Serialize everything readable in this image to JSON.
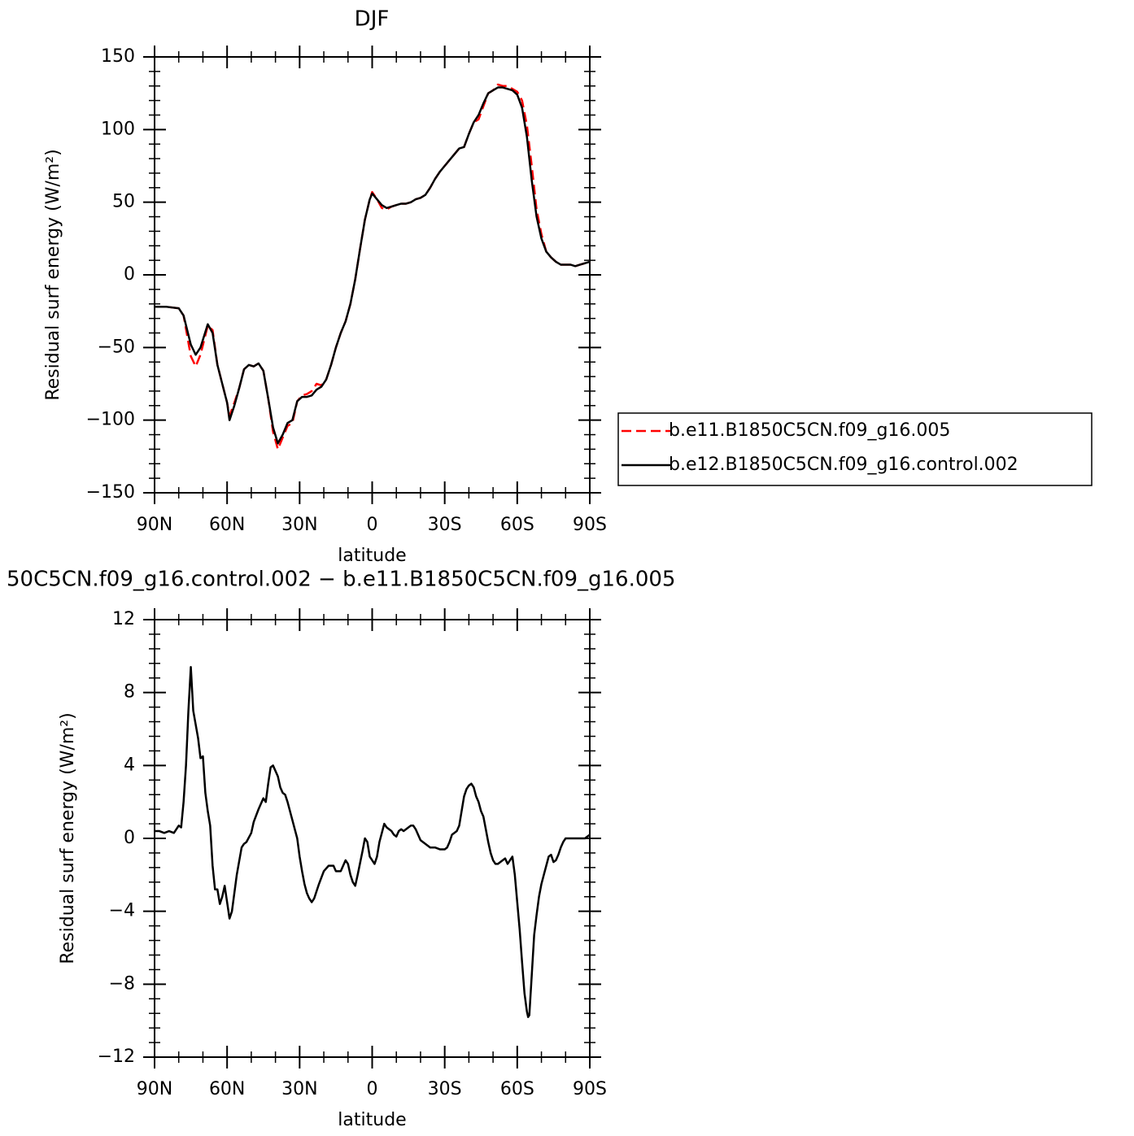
{
  "chart_data": [
    {
      "type": "line",
      "title": "DJF",
      "xlabel": "latitude",
      "ylabel": "Residual surf energy (W/m²)",
      "x": [
        90,
        85,
        80,
        78,
        75,
        73,
        71,
        68,
        66,
        64,
        62,
        60,
        59,
        57,
        55,
        53,
        51,
        49,
        47,
        45,
        43,
        41,
        39,
        37,
        35,
        33,
        31,
        29,
        27,
        25,
        23,
        21,
        19,
        17,
        15,
        13,
        11,
        9,
        7,
        5,
        3,
        1,
        0,
        -2,
        -4,
        -6,
        -8,
        -10,
        -12,
        -14,
        -16,
        -18,
        -20,
        -22,
        -24,
        -26,
        -28,
        -30,
        -32,
        -34,
        -36,
        -38,
        -40,
        -42,
        -44,
        -46,
        -48,
        -50,
        -52,
        -54,
        -56,
        -58,
        -60,
        -62,
        -64,
        -66,
        -68,
        -70,
        -72,
        -74,
        -76,
        -78,
        -80,
        -82,
        -84,
        -86,
        -88,
        -90
      ],
      "xlim": [
        90,
        -90
      ],
      "xticks": [
        {
          "value": 90,
          "label": "90N"
        },
        {
          "value": 60,
          "label": "60N"
        },
        {
          "value": 30,
          "label": "30N"
        },
        0,
        {
          "value": -30,
          "label": "30S"
        },
        {
          "value": -60,
          "label": "60S"
        },
        {
          "value": -90,
          "label": "90S"
        }
      ],
      "ylim": [
        -150,
        150
      ],
      "yticks": [
        -150,
        -100,
        -50,
        0,
        50,
        100,
        150
      ],
      "series": [
        {
          "name": "b.e11.B1850C5CN.f09_g16.005",
          "color": "#ff0000",
          "linestyle": "dashed",
          "values": [
            -22,
            -22,
            -23,
            -28,
            -56,
            -63,
            -55,
            -35,
            -38,
            -62,
            -75,
            -88,
            -97,
            -88,
            -78,
            -65,
            -62,
            -63,
            -61,
            -66,
            -85,
            -108,
            -120,
            -112,
            -104,
            -102,
            -87,
            -83,
            -82,
            -80,
            -75,
            -76,
            -72,
            -62,
            -50,
            -40,
            -32,
            -20,
            -3,
            18,
            38,
            52,
            57,
            52,
            46,
            45,
            47,
            48,
            49,
            49,
            50,
            52,
            53,
            55,
            60,
            66,
            71,
            75,
            79,
            83,
            87,
            88,
            97,
            105,
            107,
            116,
            125,
            127,
            131,
            130,
            130,
            128,
            126,
            120,
            103,
            75,
            45,
            28,
            16,
            12,
            9,
            7,
            7,
            7,
            6,
            7,
            8,
            9
          ]
        },
        {
          "name": "b.e12.B1850C5CN.f09_g16.control.002",
          "color": "#000000",
          "linestyle": "solid",
          "values": [
            -22,
            -22,
            -23,
            -28,
            -48,
            -55,
            -50,
            -34,
            -40,
            -62,
            -75,
            -88,
            -100,
            -90,
            -78,
            -65,
            -62,
            -63,
            -61,
            -66,
            -85,
            -105,
            -116,
            -110,
            -102,
            -100,
            -87,
            -84,
            -84,
            -83,
            -79,
            -77,
            -72,
            -62,
            -50,
            -40,
            -32,
            -20,
            -3,
            18,
            38,
            52,
            56,
            52,
            48,
            46,
            47,
            48,
            49,
            49,
            50,
            52,
            53,
            55,
            60,
            66,
            71,
            75,
            79,
            83,
            87,
            88,
            97,
            105,
            110,
            118,
            125,
            127,
            129,
            129,
            128,
            127,
            124,
            115,
            95,
            65,
            40,
            25,
            16,
            12,
            9,
            7,
            7,
            7,
            6,
            7,
            8,
            9
          ]
        }
      ]
    },
    {
      "type": "line",
      "title": "50C5CN.f09_g16.control.002 − b.e11.B1850C5CN.f09_g16.005",
      "xlabel": "latitude",
      "ylabel": "Residual surf energy (W/m²)",
      "x": [
        90,
        88,
        86,
        84,
        82,
        80,
        79,
        78,
        77,
        76,
        75,
        74,
        72,
        71,
        70,
        69,
        68,
        67,
        66,
        65,
        64,
        63,
        62,
        61,
        60,
        59,
        58,
        56,
        54,
        53,
        52,
        50,
        49,
        47,
        45,
        44,
        43,
        42,
        41,
        40,
        39,
        38,
        37,
        36,
        35,
        33,
        31,
        30,
        29,
        28,
        27,
        26,
        25,
        24,
        22,
        20,
        18,
        16,
        15,
        13,
        12,
        11,
        10,
        9,
        8,
        7,
        6,
        4,
        3,
        2,
        1,
        0,
        -1,
        -2,
        -3,
        -4,
        -5,
        -6,
        -7,
        -8,
        -9,
        -10,
        -11,
        -12,
        -13,
        -14,
        -15,
        -16,
        -17,
        -18,
        -19,
        -20,
        -22,
        -24,
        -26,
        -28,
        -30,
        -31,
        -32,
        -33,
        -34,
        -35,
        -36,
        -37,
        -38,
        -39,
        -40,
        -41,
        -42,
        -43,
        -44,
        -45,
        -46,
        -47,
        -48,
        -49,
        -50,
        -51,
        -52,
        -53,
        -54,
        -55,
        -56,
        -57,
        -58,
        -59,
        -60,
        -61,
        -62,
        -63,
        -64,
        -64.5,
        -65,
        -66,
        -67,
        -68,
        -69,
        -70,
        -71,
        -72,
        -73,
        -74,
        -75,
        -76,
        -77,
        -78,
        -79,
        -80,
        -82,
        -84,
        -86,
        -88,
        -89,
        -90
      ],
      "xlim": [
        90,
        -90
      ],
      "xticks": [
        {
          "value": 90,
          "label": "90N"
        },
        {
          "value": 60,
          "label": "60N"
        },
        {
          "value": 30,
          "label": "30N"
        },
        0,
        {
          "value": -30,
          "label": "30S"
        },
        {
          "value": -60,
          "label": "60S"
        },
        {
          "value": -90,
          "label": "90S"
        }
      ],
      "ylim": [
        -12,
        12
      ],
      "yticks": [
        -12,
        -8,
        -4,
        0,
        4,
        8,
        12
      ],
      "series": [
        {
          "color": "#000000",
          "linestyle": "solid",
          "values": [
            0.4,
            0.4,
            0.3,
            0.4,
            0.3,
            0.7,
            0.6,
            2,
            4,
            7,
            9.4,
            7,
            5.5,
            4.4,
            4.5,
            2.5,
            1.5,
            0.7,
            -1.5,
            -2.8,
            -2.8,
            -3.6,
            -3.2,
            -2.6,
            -3.5,
            -4.4,
            -4.0,
            -2.0,
            -0.5,
            -0.3,
            -0.2,
            0.3,
            0.9,
            1.6,
            2.2,
            2.0,
            3.0,
            3.9,
            4.0,
            3.7,
            3.4,
            2.8,
            2.5,
            2.4,
            2.0,
            1.0,
            0,
            -1,
            -1.8,
            -2.5,
            -3.0,
            -3.3,
            -3.5,
            -3.3,
            -2.5,
            -1.8,
            -1.5,
            -1.5,
            -1.8,
            -1.8,
            -1.5,
            -1.2,
            -1.4,
            -2.0,
            -2.4,
            -2.6,
            -2,
            -0.7,
            0,
            -0.2,
            -1.0,
            -1.2,
            -1.4,
            -1.0,
            -0.2,
            0.3,
            0.8,
            0.6,
            0.5,
            0.4,
            0.2,
            0.1,
            0.4,
            0.5,
            0.4,
            0.5,
            0.6,
            0.7,
            0.7,
            0.5,
            0.2,
            -0.1,
            -0.3,
            -0.5,
            -0.5,
            -0.6,
            -0.6,
            -0.5,
            -0.2,
            0.2,
            0.3,
            0.4,
            0.7,
            1.5,
            2.3,
            2.7,
            2.9,
            3.0,
            2.8,
            2.3,
            2.0,
            1.5,
            1.2,
            0.5,
            -0.2,
            -0.8,
            -1.2,
            -1.4,
            -1.4,
            -1.3,
            -1.2,
            -1.1,
            -1.4,
            -1.2,
            -1.0,
            -2.0,
            -3.5,
            -5.0,
            -6.8,
            -8.5,
            -9.5,
            -9.8,
            -9.7,
            -7.5,
            -5.3,
            -4.2,
            -3.2,
            -2.5,
            -2.0,
            -1.5,
            -1.0,
            -0.9,
            -1.3,
            -1.2,
            -0.9,
            -0.5,
            -0.2,
            0,
            0,
            0,
            0,
            0,
            0.1,
            0.2
          ]
        }
      ]
    }
  ]
}
